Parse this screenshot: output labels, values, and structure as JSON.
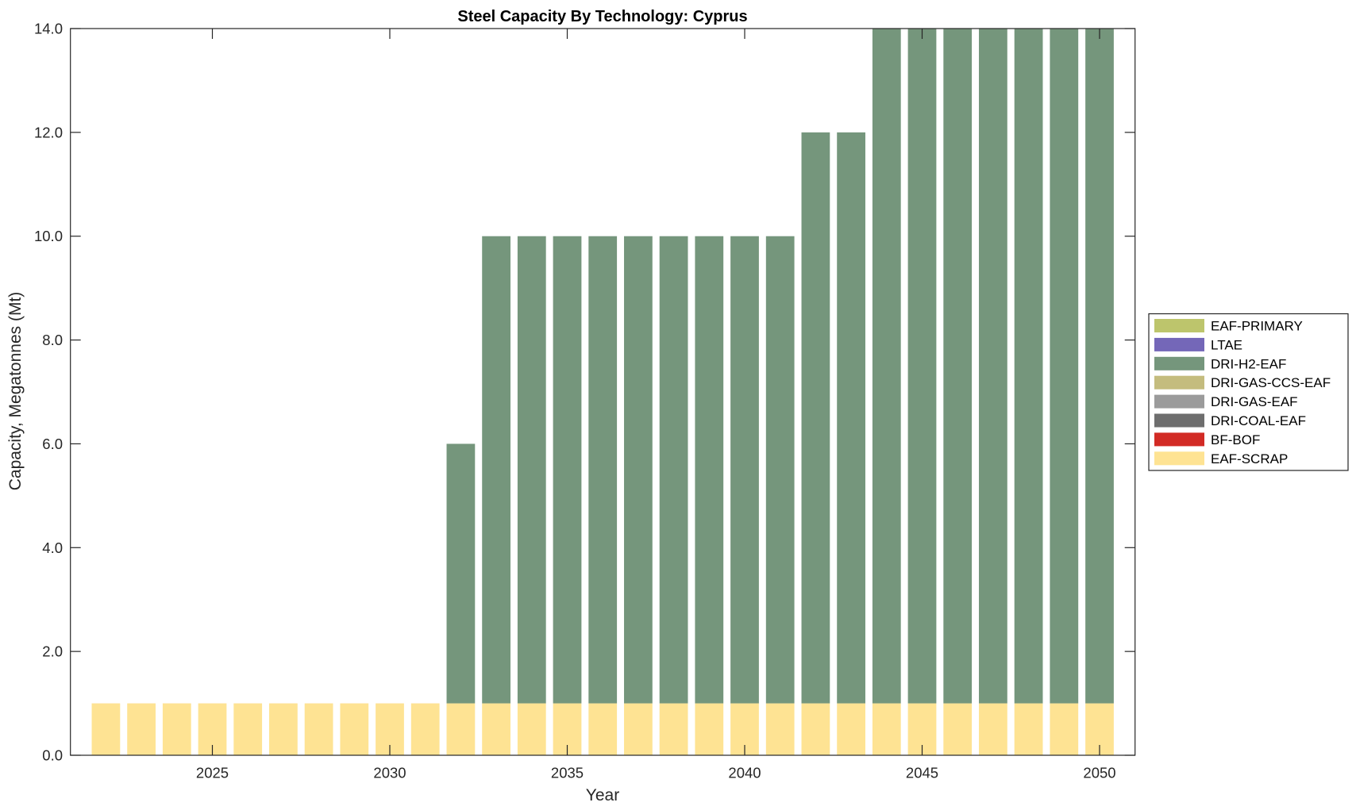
{
  "chart_data": {
    "type": "bar",
    "stacked": true,
    "title": "Steel Capacity By Technology: Cyprus",
    "xlabel": "Year",
    "ylabel": "Capacity, Megatonnes (Mt)",
    "xlim": [
      2021,
      2051
    ],
    "ylim": [
      0,
      14
    ],
    "grid": false,
    "legend_position": "outside-right",
    "x": [
      2022,
      2023,
      2024,
      2025,
      2026,
      2027,
      2028,
      2029,
      2030,
      2031,
      2032,
      2033,
      2034,
      2035,
      2036,
      2037,
      2038,
      2039,
      2040,
      2041,
      2042,
      2043,
      2044,
      2045,
      2046,
      2047,
      2048,
      2049,
      2050
    ],
    "x_ticks": [
      2025,
      2030,
      2035,
      2040,
      2045,
      2050
    ],
    "x_tick_labels": [
      "2025",
      "2030",
      "2035",
      "2040",
      "2045",
      "2050"
    ],
    "y_ticks": [
      0,
      2,
      4,
      6,
      8,
      10,
      12,
      14
    ],
    "y_tick_labels": [
      "0.0",
      "2.0",
      "4.0",
      "6.0",
      "8.0",
      "10.0",
      "12.0",
      "14.0"
    ],
    "series": [
      {
        "name": "EAF-SCRAP",
        "color": "#FEE393",
        "values": [
          1,
          1,
          1,
          1,
          1,
          1,
          1,
          1,
          1,
          1,
          1,
          1,
          1,
          1,
          1,
          1,
          1,
          1,
          1,
          1,
          1,
          1,
          1,
          1,
          1,
          1,
          1,
          1,
          1
        ]
      },
      {
        "name": "BF-BOF",
        "color": "#D22B25",
        "values": [
          0,
          0,
          0,
          0,
          0,
          0,
          0,
          0,
          0,
          0,
          0,
          0,
          0,
          0,
          0,
          0,
          0,
          0,
          0,
          0,
          0,
          0,
          0,
          0,
          0,
          0,
          0,
          0,
          0
        ]
      },
      {
        "name": "DRI-COAL-EAF",
        "color": "#6E6E6E",
        "values": [
          0,
          0,
          0,
          0,
          0,
          0,
          0,
          0,
          0,
          0,
          0,
          0,
          0,
          0,
          0,
          0,
          0,
          0,
          0,
          0,
          0,
          0,
          0,
          0,
          0,
          0,
          0,
          0,
          0
        ]
      },
      {
        "name": "DRI-GAS-EAF",
        "color": "#9B9B9B",
        "values": [
          0,
          0,
          0,
          0,
          0,
          0,
          0,
          0,
          0,
          0,
          0,
          0,
          0,
          0,
          0,
          0,
          0,
          0,
          0,
          0,
          0,
          0,
          0,
          0,
          0,
          0,
          0,
          0,
          0
        ]
      },
      {
        "name": "DRI-GAS-CCS-EAF",
        "color": "#C4BC7E",
        "values": [
          0,
          0,
          0,
          0,
          0,
          0,
          0,
          0,
          0,
          0,
          0,
          0,
          0,
          0,
          0,
          0,
          0,
          0,
          0,
          0,
          0,
          0,
          0,
          0,
          0,
          0,
          0,
          0,
          0
        ]
      },
      {
        "name": "DRI-H2-EAF",
        "color": "#75967C",
        "values": [
          0,
          0,
          0,
          0,
          0,
          0,
          0,
          0,
          0,
          0,
          5,
          9,
          9,
          9,
          9,
          9,
          9,
          9,
          9,
          9,
          11,
          11,
          13,
          13,
          13,
          13,
          13,
          13,
          13
        ]
      },
      {
        "name": "LTAE",
        "color": "#7467B8",
        "values": [
          0,
          0,
          0,
          0,
          0,
          0,
          0,
          0,
          0,
          0,
          0,
          0,
          0,
          0,
          0,
          0,
          0,
          0,
          0,
          0,
          0,
          0,
          0,
          0,
          0,
          0,
          0,
          0,
          0
        ]
      },
      {
        "name": "EAF-PRIMARY",
        "color": "#BDC56C",
        "values": [
          0,
          0,
          0,
          0,
          0,
          0,
          0,
          0,
          0,
          0,
          0,
          0,
          0,
          0,
          0,
          0,
          0,
          0,
          0,
          0,
          0,
          0,
          0,
          0,
          0,
          0,
          0,
          0,
          0
        ]
      }
    ],
    "legend": [
      "EAF-PRIMARY",
      "LTAE",
      "DRI-H2-EAF",
      "DRI-GAS-CCS-EAF",
      "DRI-GAS-EAF",
      "DRI-COAL-EAF",
      "BF-BOF",
      "EAF-SCRAP"
    ]
  }
}
